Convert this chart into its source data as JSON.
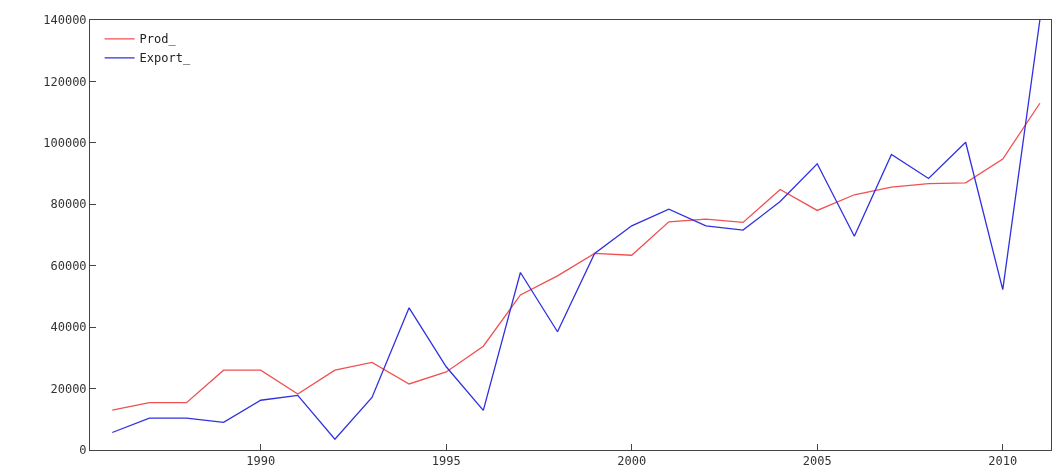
{
  "chart_data": {
    "type": "line",
    "x": [
      1986,
      1987,
      1988,
      1989,
      1990,
      1991,
      1992,
      1993,
      1994,
      1995,
      1996,
      1997,
      1998,
      1999,
      2000,
      2001,
      2002,
      2003,
      2004,
      2005,
      2006,
      2007,
      2008,
      2009,
      2010,
      2011
    ],
    "series": [
      {
        "name": "Prod_",
        "color": "#f05050",
        "values": [
          13000,
          15400,
          15400,
          26000,
          26000,
          18200,
          26000,
          28500,
          21500,
          25400,
          33800,
          50500,
          56700,
          64000,
          63400,
          74300,
          75200,
          74100,
          84800,
          78000,
          83100,
          85600,
          86700,
          87000,
          94700,
          112900
        ]
      },
      {
        "name": "Export_",
        "color": "#3030e0",
        "values": [
          5700,
          10400,
          10400,
          9000,
          16200,
          17800,
          3500,
          17100,
          46300,
          27100,
          12900,
          57800,
          38500,
          64000,
          73000,
          78400,
          73000,
          71600,
          80900,
          93200,
          69600,
          96200,
          88400,
          100200,
          52200,
          140000
        ]
      }
    ],
    "xlim": [
      1985.4,
      2011.3
    ],
    "xticks": [
      1990,
      1995,
      2000,
      2005,
      2010
    ],
    "ylim": [
      0,
      140000
    ],
    "yticks": [
      0,
      20000,
      40000,
      60000,
      80000,
      100000,
      120000,
      140000
    ],
    "grid": false,
    "legend": "top left",
    "marker": "none",
    "line_style": "solid"
  }
}
